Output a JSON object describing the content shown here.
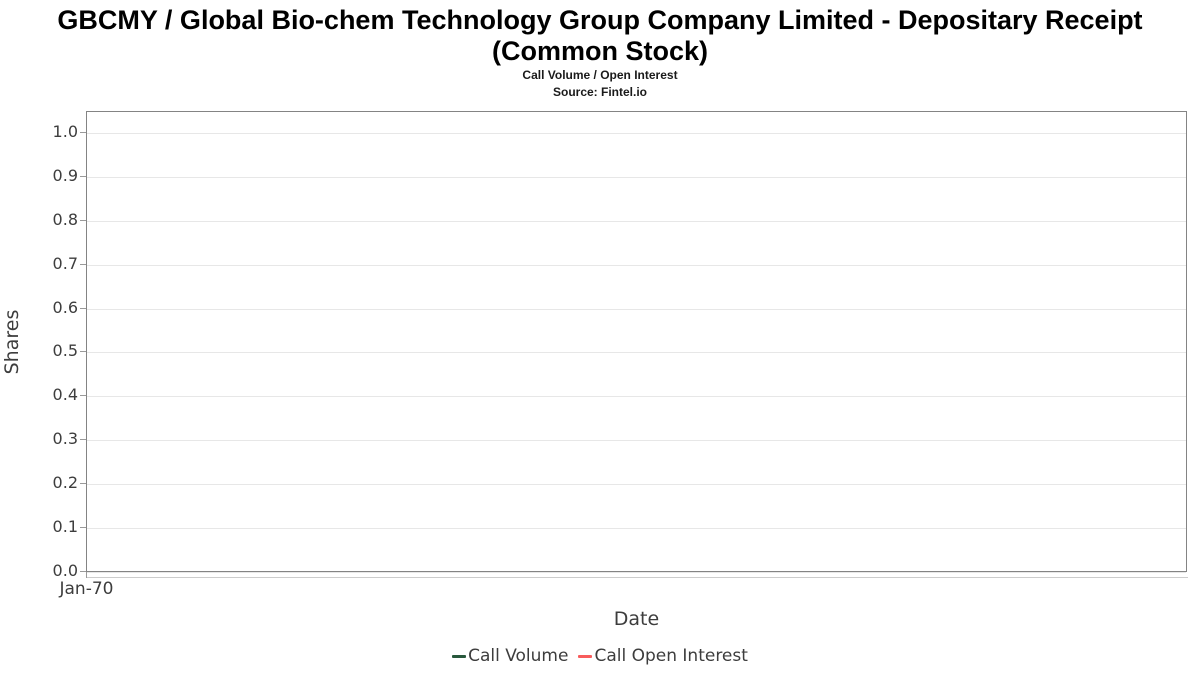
{
  "chart_data": {
    "type": "line",
    "title": "GBCMY / Global Bio-chem Technology Group Company Limited - Depositary Receipt\n(Common Stock)",
    "subtitle": "Call Volume / Open Interest",
    "source": "Source: Fintel.io",
    "xlabel": "Date",
    "ylabel": "Shares",
    "x_ticks": [
      "Jan-70"
    ],
    "y_ticks": [
      "0.0",
      "0.1",
      "0.2",
      "0.3",
      "0.4",
      "0.5",
      "0.6",
      "0.7",
      "0.8",
      "0.9",
      "1.0"
    ],
    "ylim": [
      0,
      1.05
    ],
    "grid": "horizontal-only",
    "legend_position": "bottom-center",
    "series": [
      {
        "name": "Call Volume",
        "color": "#28583c",
        "x": [],
        "values": []
      },
      {
        "name": "Call Open Interest",
        "color": "#f85c5c",
        "x": [],
        "values": []
      }
    ]
  },
  "colors": {
    "plot_border": "#848484",
    "gridline": "#e7e7e7",
    "tick_text": "#3d3d3d",
    "title_text": "#000000"
  }
}
